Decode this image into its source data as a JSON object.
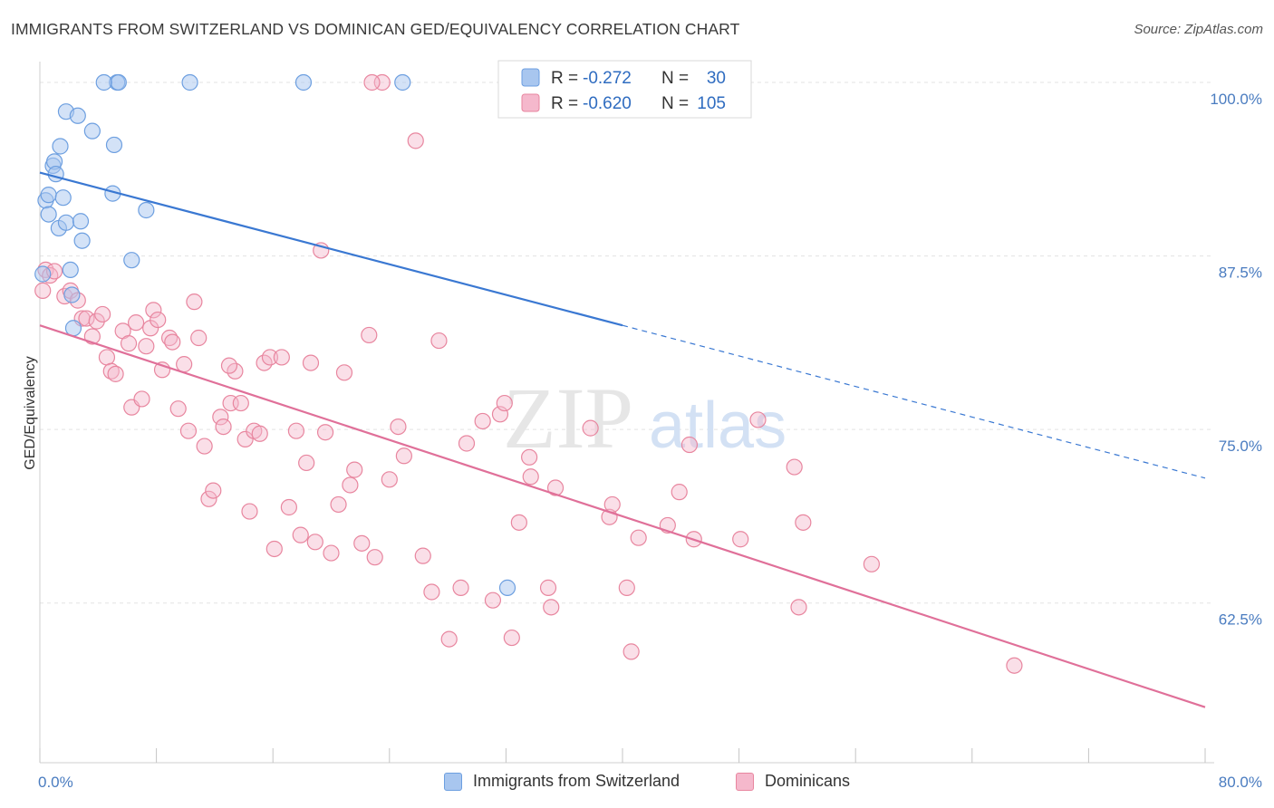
{
  "header": {
    "title": "IMMIGRANTS FROM SWITZERLAND VS DOMINICAN GED/EQUIVALENCY CORRELATION CHART",
    "source": "Source: ZipAtlas.com"
  },
  "watermark": {
    "zip": "ZIP",
    "atlas": "atlas"
  },
  "legend": {
    "r_label": "R =",
    "n_label": "N =",
    "entries": [
      {
        "r": "-0.272",
        "n": "30"
      },
      {
        "r": "-0.620",
        "n": "105"
      }
    ]
  },
  "bottom_legend": [
    "Immigrants from Switzerland",
    "Dominicans"
  ],
  "colors": {
    "blue_fill": "#a8c6ef",
    "blue_stroke": "#6d9fe0",
    "blue_line": "#3a78d2",
    "pink_fill": "#f5b8cc",
    "pink_stroke": "#e8869f",
    "pink_line": "#e07099",
    "tick_text": "#4a7cc0",
    "grid": "#e3e3e3"
  },
  "chart_data": {
    "type": "scatter",
    "title": "IMMIGRANTS FROM SWITZERLAND VS DOMINICAN GED/EQUIVALENCY CORRELATION CHART",
    "xlabel": "",
    "ylabel": "GED/Equivalency",
    "xlim": [
      0,
      80
    ],
    "ylim": [
      51,
      101.5
    ],
    "x_ticks": [
      {
        "value": 0,
        "label": "0.0%"
      },
      {
        "value": 80,
        "label": "80.0%"
      }
    ],
    "y_ticks": [
      {
        "value": 100,
        "label": "100.0%"
      },
      {
        "value": 87.5,
        "label": "87.5%"
      },
      {
        "value": 75,
        "label": "75.0%"
      },
      {
        "value": 62.5,
        "label": "62.5%"
      }
    ],
    "grid": true,
    "legend_position": "top-center",
    "series": [
      {
        "name": "Immigrants from Switzerland",
        "color": "#6d9fe0",
        "r": -0.272,
        "n": 30,
        "trend": {
          "x0": 0,
          "y0": 93.5,
          "x1": 40,
          "y1": 82.5,
          "dashed_to": 80,
          "dashed_y": 71.5
        },
        "points": [
          [
            0.2,
            86.2
          ],
          [
            0.4,
            91.5
          ],
          [
            0.6,
            91.9
          ],
          [
            0.6,
            90.5
          ],
          [
            0.9,
            94.0
          ],
          [
            1.0,
            94.3
          ],
          [
            1.1,
            93.4
          ],
          [
            1.3,
            89.5
          ],
          [
            1.4,
            95.4
          ],
          [
            1.6,
            91.7
          ],
          [
            1.8,
            89.9
          ],
          [
            1.8,
            97.9
          ],
          [
            2.1,
            86.5
          ],
          [
            2.2,
            84.7
          ],
          [
            2.3,
            82.3
          ],
          [
            2.6,
            97.6
          ],
          [
            2.8,
            90.0
          ],
          [
            2.9,
            88.6
          ],
          [
            3.6,
            96.5
          ],
          [
            5.3,
            100.0
          ],
          [
            5.4,
            100.0
          ],
          [
            4.4,
            100.0
          ],
          [
            5.1,
            95.5
          ],
          [
            5.0,
            92.0
          ],
          [
            6.3,
            87.2
          ],
          [
            7.3,
            90.8
          ],
          [
            10.3,
            100.0
          ],
          [
            18.1,
            100.0
          ],
          [
            24.9,
            100.0
          ],
          [
            32.1,
            63.6
          ]
        ]
      },
      {
        "name": "Dominicans",
        "color": "#e8869f",
        "r": -0.62,
        "n": 105,
        "trend": {
          "x0": 0,
          "y0": 82.5,
          "x1": 80,
          "y1": 55.0
        },
        "points": [
          [
            0.2,
            85.0
          ],
          [
            0.4,
            86.5
          ],
          [
            0.7,
            86.1
          ],
          [
            1.0,
            86.4
          ],
          [
            1.7,
            84.6
          ],
          [
            2.1,
            85.0
          ],
          [
            2.6,
            84.3
          ],
          [
            2.9,
            83.0
          ],
          [
            3.2,
            83.0
          ],
          [
            3.6,
            81.7
          ],
          [
            3.9,
            82.8
          ],
          [
            4.3,
            83.3
          ],
          [
            4.6,
            80.2
          ],
          [
            4.9,
            79.2
          ],
          [
            5.2,
            79.0
          ],
          [
            5.7,
            82.1
          ],
          [
            6.1,
            81.2
          ],
          [
            6.3,
            76.6
          ],
          [
            6.6,
            82.7
          ],
          [
            7.0,
            77.2
          ],
          [
            7.3,
            81.0
          ],
          [
            7.6,
            82.3
          ],
          [
            7.8,
            83.6
          ],
          [
            8.1,
            82.9
          ],
          [
            8.4,
            79.3
          ],
          [
            8.9,
            81.6
          ],
          [
            9.1,
            81.3
          ],
          [
            9.5,
            76.5
          ],
          [
            9.9,
            79.7
          ],
          [
            10.2,
            74.9
          ],
          [
            10.6,
            84.2
          ],
          [
            10.9,
            81.6
          ],
          [
            11.3,
            73.8
          ],
          [
            11.6,
            70.0
          ],
          [
            11.9,
            70.6
          ],
          [
            12.4,
            75.9
          ],
          [
            12.6,
            75.2
          ],
          [
            13.1,
            76.9
          ],
          [
            13.4,
            79.2
          ],
          [
            13.8,
            76.9
          ],
          [
            14.1,
            74.3
          ],
          [
            14.4,
            69.1
          ],
          [
            14.7,
            74.9
          ],
          [
            15.1,
            74.7
          ],
          [
            15.4,
            79.8
          ],
          [
            15.8,
            80.2
          ],
          [
            16.1,
            66.4
          ],
          [
            16.6,
            80.2
          ],
          [
            17.1,
            69.4
          ],
          [
            17.6,
            74.9
          ],
          [
            17.9,
            67.4
          ],
          [
            18.3,
            72.6
          ],
          [
            18.6,
            79.8
          ],
          [
            18.9,
            66.9
          ],
          [
            19.3,
            87.9
          ],
          [
            19.6,
            74.8
          ],
          [
            20.0,
            66.1
          ],
          [
            20.5,
            69.6
          ],
          [
            20.9,
            79.1
          ],
          [
            21.3,
            71.0
          ],
          [
            21.6,
            72.1
          ],
          [
            22.1,
            66.8
          ],
          [
            22.6,
            81.8
          ],
          [
            23.0,
            65.8
          ],
          [
            23.5,
            100.0
          ],
          [
            24.0,
            71.4
          ],
          [
            24.6,
            75.2
          ],
          [
            25.0,
            73.1
          ],
          [
            25.8,
            95.8
          ],
          [
            26.3,
            65.9
          ],
          [
            26.9,
            63.3
          ],
          [
            27.4,
            81.4
          ],
          [
            28.1,
            59.9
          ],
          [
            28.9,
            63.6
          ],
          [
            29.3,
            74.0
          ],
          [
            30.4,
            75.6
          ],
          [
            31.1,
            62.7
          ],
          [
            31.6,
            76.1
          ],
          [
            31.9,
            76.9
          ],
          [
            32.4,
            60.0
          ],
          [
            32.9,
            68.3
          ],
          [
            33.6,
            73.0
          ],
          [
            33.7,
            71.6
          ],
          [
            34.9,
            63.6
          ],
          [
            35.1,
            62.2
          ],
          [
            35.4,
            70.8
          ],
          [
            37.8,
            75.1
          ],
          [
            39.1,
            68.7
          ],
          [
            39.3,
            69.6
          ],
          [
            40.3,
            63.6
          ],
          [
            40.6,
            59.0
          ],
          [
            41.1,
            67.2
          ],
          [
            43.1,
            68.1
          ],
          [
            43.9,
            70.5
          ],
          [
            44.6,
            73.9
          ],
          [
            44.9,
            67.1
          ],
          [
            48.1,
            67.1
          ],
          [
            49.3,
            75.7
          ],
          [
            51.8,
            72.3
          ],
          [
            52.1,
            62.2
          ],
          [
            52.4,
            68.3
          ],
          [
            57.1,
            65.3
          ],
          [
            66.9,
            58.0
          ],
          [
            22.8,
            100.0
          ],
          [
            13.0,
            79.6
          ]
        ]
      }
    ]
  }
}
